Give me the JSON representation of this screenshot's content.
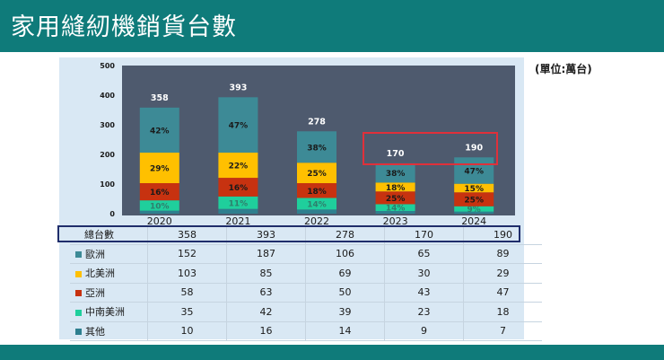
{
  "header": {
    "title": "家用縫紉機銷貨台數"
  },
  "unit_note": "(單位:萬台)",
  "chart_data": {
    "type": "bar",
    "stacked": true,
    "categories": [
      "2020",
      "2021",
      "2022",
      "2023",
      "2024"
    ],
    "ylim": [
      0,
      500
    ],
    "yticks": [
      "0",
      "100",
      "200",
      "300",
      "400",
      "500"
    ],
    "totals": [
      358,
      393,
      278,
      170,
      190
    ],
    "series": [
      {
        "name": "其他",
        "values": [
          10,
          16,
          14,
          9,
          7
        ],
        "color": "#2e7f8f",
        "pct": [
          "",
          "",
          "",
          "",
          ""
        ]
      },
      {
        "name": "中南美洲",
        "values": [
          35,
          42,
          39,
          23,
          18
        ],
        "color": "#1fcf9c",
        "pct": [
          "10%",
          "11%",
          "14%",
          "14%",
          "9%"
        ]
      },
      {
        "name": "亞洲",
        "values": [
          58,
          63,
          50,
          43,
          47
        ],
        "color": "#c73210",
        "pct": [
          "16%",
          "16%",
          "18%",
          "25%",
          "25%"
        ]
      },
      {
        "name": "北美洲",
        "values": [
          103,
          85,
          69,
          30,
          29
        ],
        "color": "#ffc000",
        "pct": [
          "29%",
          "22%",
          "25%",
          "18%",
          "15%"
        ]
      },
      {
        "name": "歐洲",
        "values": [
          152,
          187,
          106,
          65,
          89
        ],
        "color": "#3d8a96",
        "pct": [
          "42%",
          "47%",
          "38%",
          "38%",
          "47%"
        ]
      }
    ]
  },
  "table": {
    "total_label": "總台數",
    "rows": [
      {
        "label": "歐洲",
        "color": "#3d8a96",
        "values": [
          "152",
          "187",
          "106",
          "65",
          "89"
        ]
      },
      {
        "label": "北美洲",
        "color": "#ffc000",
        "values": [
          "103",
          "85",
          "69",
          "30",
          "29"
        ]
      },
      {
        "label": "亞洲",
        "color": "#c73210",
        "values": [
          "58",
          "63",
          "50",
          "43",
          "47"
        ]
      },
      {
        "label": "中南美洲",
        "color": "#1fcf9c",
        "values": [
          "35",
          "42",
          "39",
          "23",
          "18"
        ]
      },
      {
        "label": "其他",
        "color": "#2e7f8f",
        "values": [
          "10",
          "16",
          "14",
          "9",
          "7"
        ]
      }
    ],
    "totals": [
      "358",
      "393",
      "278",
      "170",
      "190"
    ]
  }
}
